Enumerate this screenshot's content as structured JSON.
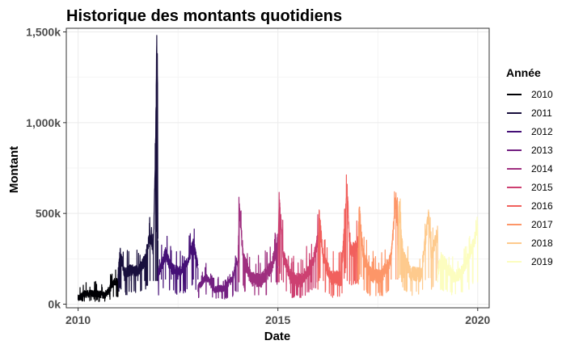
{
  "chart_data": {
    "type": "line",
    "title": "Historique des montants quotidiens",
    "xlabel": "Date",
    "ylabel": "Montant",
    "xlim": [
      "2009-09-15",
      "2020-04-15"
    ],
    "ylim": [
      -20000,
      1520000
    ],
    "x_ticks": [
      {
        "value": "2010-01-01",
        "label": "2010"
      },
      {
        "value": "2015-01-01",
        "label": "2015"
      },
      {
        "value": "2020-01-01",
        "label": "2020"
      }
    ],
    "y_ticks": [
      {
        "value": 0,
        "label": "0k"
      },
      {
        "value": 500000,
        "label": "500k"
      },
      {
        "value": 1000000,
        "label": "1,000k"
      },
      {
        "value": 1500000,
        "label": "1,500k"
      }
    ],
    "grid": true,
    "legend": {
      "title": "Année",
      "position": "right"
    },
    "series": [
      {
        "name": "2010",
        "color": "#000004",
        "base": 50000,
        "noise": 25000,
        "points": [
          [
            "2010-01-01",
            30000
          ],
          [
            "2010-03-01",
            55000
          ],
          [
            "2010-06-01",
            60000
          ],
          [
            "2010-09-01",
            50000
          ],
          [
            "2010-10-15",
            80000
          ],
          [
            "2010-11-20",
            120000
          ],
          [
            "2010-12-31",
            130000
          ]
        ]
      },
      {
        "name": "2011",
        "color": "#180f3d",
        "base": 160000,
        "noise": 40000,
        "points": [
          [
            "2011-01-01",
            160000
          ],
          [
            "2011-01-20",
            290000
          ],
          [
            "2011-03-01",
            170000
          ],
          [
            "2011-05-01",
            190000
          ],
          [
            "2011-07-01",
            180000
          ],
          [
            "2011-09-01",
            240000
          ],
          [
            "2011-10-20",
            380000
          ],
          [
            "2011-11-20",
            300000
          ],
          [
            "2011-12-10",
            880000
          ],
          [
            "2011-12-20",
            1430000
          ],
          [
            "2011-12-28",
            1220000
          ],
          [
            "2011-12-31",
            350000
          ]
        ]
      },
      {
        "name": "2012",
        "color": "#440f76",
        "base": 170000,
        "noise": 40000,
        "points": [
          [
            "2012-01-01",
            170000
          ],
          [
            "2012-02-01",
            210000
          ],
          [
            "2012-03-10",
            280000
          ],
          [
            "2012-05-01",
            200000
          ],
          [
            "2012-07-01",
            180000
          ],
          [
            "2012-09-01",
            200000
          ],
          [
            "2012-11-20",
            330000
          ],
          [
            "2012-12-31",
            200000
          ]
        ]
      },
      {
        "name": "2013",
        "color": "#721f81",
        "base": 85000,
        "noise": 25000,
        "points": [
          [
            "2013-01-01",
            90000
          ],
          [
            "2013-03-15",
            150000
          ],
          [
            "2013-06-01",
            80000
          ],
          [
            "2013-09-01",
            90000
          ],
          [
            "2013-11-15",
            140000
          ],
          [
            "2013-12-15",
            240000
          ],
          [
            "2013-12-31",
            200000
          ]
        ]
      },
      {
        "name": "2014",
        "color": "#9f2f7f",
        "base": 150000,
        "noise": 50000,
        "points": [
          [
            "2014-01-01",
            200000
          ],
          [
            "2014-01-12",
            545000
          ],
          [
            "2014-02-20",
            250000
          ],
          [
            "2014-05-01",
            140000
          ],
          [
            "2014-08-01",
            130000
          ],
          [
            "2014-11-01",
            200000
          ],
          [
            "2014-12-15",
            300000
          ],
          [
            "2014-12-31",
            350000
          ]
        ]
      },
      {
        "name": "2015",
        "color": "#cd4071",
        "base": 150000,
        "noise": 50000,
        "points": [
          [
            "2015-01-01",
            200000
          ],
          [
            "2015-01-12",
            580000
          ],
          [
            "2015-02-20",
            270000
          ],
          [
            "2015-05-01",
            140000
          ],
          [
            "2015-08-01",
            130000
          ],
          [
            "2015-11-01",
            210000
          ],
          [
            "2015-12-15",
            300000
          ],
          [
            "2015-12-31",
            380000
          ]
        ]
      },
      {
        "name": "2016",
        "color": "#f1605d",
        "base": 160000,
        "noise": 50000,
        "points": [
          [
            "2016-01-01",
            200000
          ],
          [
            "2016-01-12",
            500000
          ],
          [
            "2016-02-20",
            250000
          ],
          [
            "2016-05-01",
            150000
          ],
          [
            "2016-08-01",
            140000
          ],
          [
            "2016-09-25",
            640000
          ],
          [
            "2016-10-20",
            300000
          ],
          [
            "2016-12-01",
            300000
          ],
          [
            "2016-12-31",
            350000
          ]
        ]
      },
      {
        "name": "2017",
        "color": "#fd9668",
        "base": 170000,
        "noise": 50000,
        "points": [
          [
            "2017-01-01",
            220000
          ],
          [
            "2017-01-12",
            530000
          ],
          [
            "2017-02-20",
            260000
          ],
          [
            "2017-05-01",
            160000
          ],
          [
            "2017-08-01",
            150000
          ],
          [
            "2017-11-01",
            250000
          ],
          [
            "2017-12-15",
            600000
          ],
          [
            "2017-12-31",
            400000
          ]
        ]
      },
      {
        "name": "2018",
        "color": "#feca8d",
        "base": 180000,
        "noise": 50000,
        "points": [
          [
            "2018-01-01",
            250000
          ],
          [
            "2018-01-12",
            540000
          ],
          [
            "2018-02-20",
            260000
          ],
          [
            "2018-05-01",
            170000
          ],
          [
            "2018-08-01",
            160000
          ],
          [
            "2018-10-10",
            500000
          ],
          [
            "2018-11-01",
            260000
          ],
          [
            "2018-12-31",
            400000
          ]
        ]
      },
      {
        "name": "2019",
        "color": "#fcfdbf",
        "base": 150000,
        "noise": 45000,
        "points": [
          [
            "2019-01-01",
            180000
          ],
          [
            "2019-02-01",
            260000
          ],
          [
            "2019-04-01",
            200000
          ],
          [
            "2019-06-01",
            150000
          ],
          [
            "2019-08-01",
            170000
          ],
          [
            "2019-10-01",
            250000
          ],
          [
            "2019-11-15",
            320000
          ],
          [
            "2019-12-31",
            410000
          ]
        ]
      }
    ]
  }
}
